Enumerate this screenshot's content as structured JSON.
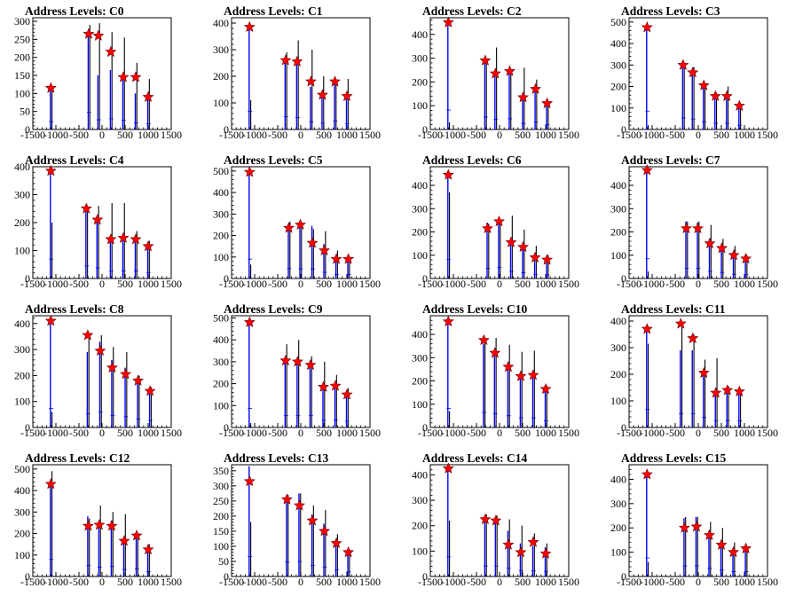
{
  "figure": {
    "background": "#ffffff"
  },
  "colors": {
    "hist_black": "#000000",
    "hist_blue": "#0000ff",
    "marker_fill": "#ff0000",
    "marker_stroke": "#660000"
  },
  "chart_data": [
    {
      "type": "bar",
      "title": "Address Levels: C0",
      "xlim": [
        -1500,
        1500
      ],
      "ylim": [
        0,
        310
      ],
      "xticks": [
        -1500,
        -1000,
        -500,
        0,
        500,
        1000,
        1500
      ],
      "xtick_labels": [
        "-1500",
        "-1000",
        "-500",
        "0",
        "500",
        "1000",
        "1500"
      ],
      "yticks": [
        0,
        50,
        100,
        150,
        200,
        250,
        300
      ],
      "ytick_labels": [
        "0",
        "50",
        "100",
        "150",
        "200",
        "250",
        "300"
      ],
      "peaks": [
        -1100,
        -280,
        -70,
        200,
        470,
        740,
        1010
      ],
      "black": [
        105,
        290,
        295,
        270,
        255,
        185,
        140
      ],
      "blue": [
        120,
        265,
        150,
        165,
        140,
        100,
        90
      ],
      "markers": [
        115,
        265,
        260,
        215,
        145,
        145,
        90
      ]
    },
    {
      "type": "bar",
      "title": "Address Levels: C1",
      "xlim": [
        -1500,
        1500
      ],
      "ylim": [
        0,
        420
      ],
      "xticks": [
        -1500,
        -1000,
        -500,
        0,
        500,
        1000,
        1500
      ],
      "xtick_labels": [
        "-1500",
        "-1000",
        "-500",
        "0",
        "500",
        "1000",
        "1500"
      ],
      "yticks": [
        0,
        100,
        200,
        300,
        400
      ],
      "ytick_labels": [
        "0",
        "100",
        "200",
        "300",
        "400"
      ],
      "peaks": [
        -1100,
        -320,
        -70,
        230,
        480,
        750,
        1010
      ],
      "black": [
        110,
        290,
        335,
        300,
        200,
        180,
        190
      ],
      "blue": [
        380,
        265,
        250,
        160,
        130,
        175,
        125
      ],
      "markers": [
        385,
        260,
        255,
        180,
        130,
        180,
        125
      ]
    },
    {
      "type": "bar",
      "title": "Address Levels: C2",
      "xlim": [
        -1500,
        1500
      ],
      "ylim": [
        0,
        470
      ],
      "xticks": [
        -1500,
        -1000,
        -500,
        0,
        500,
        1000,
        1500
      ],
      "xtick_labels": [
        "-1500",
        "-1000",
        "-500",
        "0",
        "500",
        "1000",
        "1500"
      ],
      "yticks": [
        0,
        100,
        200,
        300,
        400
      ],
      "ytick_labels": [
        "0",
        "100",
        "200",
        "300",
        "400"
      ],
      "peaks": [
        -1100,
        -300,
        -80,
        230,
        520,
        790,
        1040
      ],
      "black": [
        30,
        290,
        345,
        255,
        260,
        210,
        120
      ],
      "blue": [
        455,
        290,
        235,
        250,
        140,
        170,
        115
      ],
      "markers": [
        450,
        290,
        235,
        245,
        135,
        170,
        110
      ]
    },
    {
      "type": "bar",
      "title": "Address Levels: C3",
      "xlim": [
        -1500,
        1500
      ],
      "ylim": [
        0,
        520
      ],
      "xticks": [
        -1500,
        -1000,
        -500,
        0,
        500,
        1000,
        1500
      ],
      "xtick_labels": [
        "-1500",
        "-1000",
        "-500",
        "0",
        "500",
        "1000",
        "1500"
      ],
      "yticks": [
        0,
        100,
        200,
        300,
        400,
        500
      ],
      "ytick_labels": [
        "0",
        "100",
        "200",
        "300",
        "400",
        "500"
      ],
      "peaks": [
        -1100,
        -320,
        -110,
        130,
        380,
        630,
        900
      ],
      "black": [
        20,
        300,
        290,
        210,
        170,
        200,
        120
      ],
      "blue": [
        475,
        300,
        270,
        200,
        160,
        160,
        110
      ],
      "markers": [
        475,
        300,
        265,
        205,
        155,
        155,
        110
      ]
    },
    {
      "type": "bar",
      "title": "Address Levels: C4",
      "xlim": [
        -1500,
        1500
      ],
      "ylim": [
        0,
        400
      ],
      "xticks": [
        -1500,
        -1000,
        -500,
        0,
        500,
        1000,
        1500
      ],
      "xtick_labels": [
        "-1500",
        "-1000",
        "-500",
        "0",
        "500",
        "1000",
        "1500"
      ],
      "yticks": [
        0,
        100,
        200,
        300,
        400
      ],
      "ytick_labels": [
        "0",
        "100",
        "200",
        "300",
        "400"
      ],
      "peaks": [
        -1100,
        -330,
        -90,
        200,
        470,
        740,
        1010
      ],
      "black": [
        200,
        260,
        260,
        270,
        270,
        170,
        135
      ],
      "blue": [
        385,
        250,
        210,
        150,
        150,
        150,
        120
      ],
      "markers": [
        385,
        250,
        210,
        140,
        145,
        140,
        115
      ]
    },
    {
      "type": "bar",
      "title": "Address Levels: C5",
      "xlim": [
        -1500,
        1500
      ],
      "ylim": [
        0,
        520
      ],
      "xticks": [
        -1500,
        -1000,
        -500,
        0,
        500,
        1000,
        1500
      ],
      "xtick_labels": [
        "-1500",
        "-1000",
        "-500",
        "0",
        "500",
        "1000",
        "1500"
      ],
      "yticks": [
        0,
        100,
        200,
        300,
        400,
        500
      ],
      "ytick_labels": [
        "0",
        "100",
        "200",
        "300",
        "400",
        "500"
      ],
      "peaks": [
        -1100,
        -250,
        0,
        260,
        520,
        780,
        1040
      ],
      "black": [
        65,
        265,
        250,
        230,
        220,
        130,
        90
      ],
      "blue": [
        500,
        255,
        250,
        245,
        160,
        100,
        100
      ],
      "markers": [
        495,
        235,
        250,
        165,
        130,
        90,
        90
      ]
    },
    {
      "type": "bar",
      "title": "Address Levels: C6",
      "xlim": [
        -1500,
        1500
      ],
      "ylim": [
        0,
        480
      ],
      "xticks": [
        -1500,
        -1000,
        -500,
        0,
        500,
        1000,
        1500
      ],
      "xtick_labels": [
        "-1500",
        "-1000",
        "-500",
        "0",
        "500",
        "1000",
        "1500"
      ],
      "yticks": [
        0,
        100,
        200,
        300,
        400
      ],
      "ytick_labels": [
        "0",
        "100",
        "200",
        "300",
        "400"
      ],
      "peaks": [
        -1100,
        -250,
        0,
        260,
        520,
        780,
        1040
      ],
      "black": [
        370,
        235,
        240,
        270,
        210,
        140,
        100
      ],
      "blue": [
        450,
        240,
        260,
        170,
        140,
        100,
        85
      ],
      "markers": [
        445,
        215,
        245,
        155,
        135,
        90,
        80
      ]
    },
    {
      "type": "bar",
      "title": "Address Levels: C7",
      "xlim": [
        -1500,
        1500
      ],
      "ylim": [
        0,
        480
      ],
      "xticks": [
        -1500,
        -1000,
        -500,
        0,
        500,
        1000,
        1500
      ],
      "xtick_labels": [
        "-1500",
        "-1000",
        "-500",
        "0",
        "500",
        "1000",
        "1500"
      ],
      "yticks": [
        0,
        100,
        200,
        300,
        400
      ],
      "ytick_labels": [
        "0",
        "100",
        "200",
        "300",
        "400"
      ],
      "peaks": [
        -1100,
        -250,
        0,
        260,
        520,
        780,
        1040
      ],
      "black": [
        30,
        245,
        245,
        230,
        170,
        140,
        100
      ],
      "blue": [
        470,
        245,
        240,
        170,
        145,
        100,
        90
      ],
      "markers": [
        465,
        215,
        215,
        150,
        130,
        100,
        85
      ]
    },
    {
      "type": "bar",
      "title": "Address Levels: C8",
      "xlim": [
        -1500,
        1500
      ],
      "ylim": [
        0,
        430
      ],
      "xticks": [
        -1500,
        -1000,
        -500,
        0,
        500,
        1000,
        1500
      ],
      "xtick_labels": [
        "-1500",
        "-1000",
        "-500",
        "0",
        "500",
        "1000",
        "1500"
      ],
      "yticks": [
        0,
        100,
        200,
        300,
        400
      ],
      "ytick_labels": [
        "0",
        "100",
        "200",
        "300",
        "400"
      ],
      "peaks": [
        -1100,
        -300,
        -30,
        230,
        520,
        790,
        1050
      ],
      "black": [
        60,
        350,
        355,
        310,
        290,
        200,
        155
      ],
      "blue": [
        410,
        290,
        330,
        260,
        230,
        180,
        150
      ],
      "markers": [
        410,
        355,
        295,
        230,
        205,
        180,
        140
      ]
    },
    {
      "type": "bar",
      "title": "Address Levels: C9",
      "xlim": [
        -1500,
        1500
      ],
      "ylim": [
        0,
        510
      ],
      "xticks": [
        -1500,
        -1000,
        -500,
        0,
        500,
        1000,
        1500
      ],
      "xtick_labels": [
        "-1500",
        "-1000",
        "-500",
        "0",
        "500",
        "1000",
        "1500"
      ],
      "yticks": [
        0,
        100,
        200,
        300,
        400,
        500
      ],
      "ytick_labels": [
        "0",
        "100",
        "200",
        "300",
        "400",
        "500"
      ],
      "peaks": [
        -1100,
        -320,
        -60,
        220,
        500,
        760,
        1010
      ],
      "black": [
        20,
        380,
        400,
        325,
        300,
        240,
        180
      ],
      "blue": [
        480,
        300,
        300,
        300,
        180,
        190,
        160
      ],
      "markers": [
        480,
        305,
        300,
        285,
        185,
        190,
        150
      ]
    },
    {
      "type": "bar",
      "title": "Address Levels: C10",
      "xlim": [
        -1500,
        1500
      ],
      "ylim": [
        0,
        480
      ],
      "xticks": [
        -1500,
        -1000,
        -500,
        0,
        500,
        1000,
        1500
      ],
      "xtick_labels": [
        "-1500",
        "-1000",
        "-500",
        "0",
        "500",
        "1000",
        "1500"
      ],
      "yticks": [
        0,
        100,
        200,
        300,
        400
      ],
      "ytick_labels": [
        "0",
        "100",
        "200",
        "300",
        "400"
      ],
      "peaks": [
        -1100,
        -330,
        -90,
        200,
        470,
        740,
        1010
      ],
      "black": [
        70,
        385,
        385,
        355,
        325,
        330,
        180
      ],
      "blue": [
        455,
        360,
        330,
        280,
        230,
        230,
        160
      ],
      "markers": [
        455,
        375,
        320,
        260,
        220,
        225,
        165
      ]
    },
    {
      "type": "bar",
      "title": "Address Levels: C11",
      "xlim": [
        -1500,
        1500
      ],
      "ylim": [
        0,
        420
      ],
      "xticks": [
        -1500,
        -1000,
        -500,
        0,
        500,
        1000,
        1500
      ],
      "xtick_labels": [
        "-1500",
        "-1000",
        "-500",
        "0",
        "500",
        "1000",
        "1500"
      ],
      "yticks": [
        0,
        100,
        200,
        300,
        400
      ],
      "ytick_labels": [
        "0",
        "100",
        "200",
        "300",
        "400"
      ],
      "peaks": [
        -1100,
        -370,
        -110,
        130,
        390,
        640,
        900
      ],
      "black": [
        315,
        400,
        350,
        255,
        260,
        155,
        140
      ],
      "blue": [
        375,
        290,
        290,
        210,
        140,
        145,
        140
      ],
      "markers": [
        370,
        390,
        335,
        205,
        130,
        140,
        135
      ]
    },
    {
      "type": "bar",
      "title": "Address Levels: C12",
      "xlim": [
        -1500,
        1500
      ],
      "ylim": [
        0,
        520
      ],
      "xticks": [
        -1500,
        -1000,
        -500,
        0,
        500,
        1000,
        1500
      ],
      "xtick_labels": [
        "-1500",
        "-1000",
        "-500",
        "0",
        "500",
        "1000",
        "1500"
      ],
      "yticks": [
        0,
        100,
        200,
        300,
        400,
        500
      ],
      "ytick_labels": [
        "0",
        "100",
        "200",
        "300",
        "400",
        "500"
      ],
      "peaks": [
        -1100,
        -290,
        -50,
        220,
        490,
        760,
        1010
      ],
      "black": [
        490,
        270,
        330,
        300,
        290,
        200,
        150
      ],
      "blue": [
        440,
        280,
        240,
        260,
        180,
        200,
        130
      ],
      "markers": [
        430,
        235,
        240,
        235,
        165,
        190,
        125
      ]
    },
    {
      "type": "bar",
      "title": "Address Levels: C13",
      "xlim": [
        -1500,
        1500
      ],
      "ylim": [
        0,
        370
      ],
      "xticks": [
        -1500,
        -1000,
        -500,
        0,
        500,
        1000,
        1500
      ],
      "xtick_labels": [
        "-1500",
        "-1000",
        "-500",
        "0",
        "500",
        "1000",
        "1500"
      ],
      "yticks": [
        0,
        50,
        100,
        150,
        200,
        250,
        300,
        350
      ],
      "ytick_labels": [
        "0",
        "50",
        "100",
        "150",
        "200",
        "250",
        "300",
        "350"
      ],
      "peaks": [
        -1100,
        -290,
        -20,
        260,
        520,
        780,
        1040
      ],
      "black": [
        180,
        270,
        275,
        235,
        220,
        140,
        90
      ],
      "blue": [
        365,
        265,
        275,
        205,
        175,
        120,
        85
      ],
      "markers": [
        315,
        255,
        235,
        185,
        150,
        110,
        80
      ]
    },
    {
      "type": "bar",
      "title": "Address Levels: C14",
      "xlim": [
        -1500,
        1500
      ],
      "ylim": [
        0,
        440
      ],
      "xticks": [
        -1500,
        -1000,
        -500,
        0,
        500,
        1000,
        1500
      ],
      "xtick_labels": [
        "-1500",
        "-1000",
        "-500",
        "0",
        "500",
        "1000",
        "1500"
      ],
      "yticks": [
        0,
        100,
        200,
        300,
        400
      ],
      "ytick_labels": [
        "0",
        "100",
        "200",
        "300",
        "400"
      ],
      "peaks": [
        -1100,
        -300,
        -70,
        200,
        470,
        740,
        1010
      ],
      "black": [
        220,
        245,
        240,
        225,
        200,
        170,
        130
      ],
      "blue": [
        430,
        230,
        230,
        180,
        130,
        120,
        115
      ],
      "markers": [
        425,
        225,
        220,
        125,
        95,
        135,
        90
      ]
    },
    {
      "type": "bar",
      "title": "Address Levels: C15",
      "xlim": [
        -1500,
        1500
      ],
      "ylim": [
        0,
        460
      ],
      "xticks": [
        -1500,
        -1000,
        -500,
        0,
        500,
        1000,
        1500
      ],
      "xtick_labels": [
        "-1500",
        "-1000",
        "-500",
        "0",
        "500",
        "1000",
        "1500"
      ],
      "yticks": [
        0,
        100,
        200,
        300,
        400
      ],
      "ytick_labels": [
        "0",
        "100",
        "200",
        "300",
        "400"
      ],
      "peaks": [
        -1100,
        -290,
        -30,
        250,
        510,
        770,
        1040
      ],
      "black": [
        60,
        245,
        245,
        225,
        200,
        140,
        120
      ],
      "blue": [
        425,
        240,
        245,
        185,
        145,
        110,
        110
      ],
      "markers": [
        420,
        200,
        205,
        170,
        130,
        100,
        115
      ]
    }
  ]
}
